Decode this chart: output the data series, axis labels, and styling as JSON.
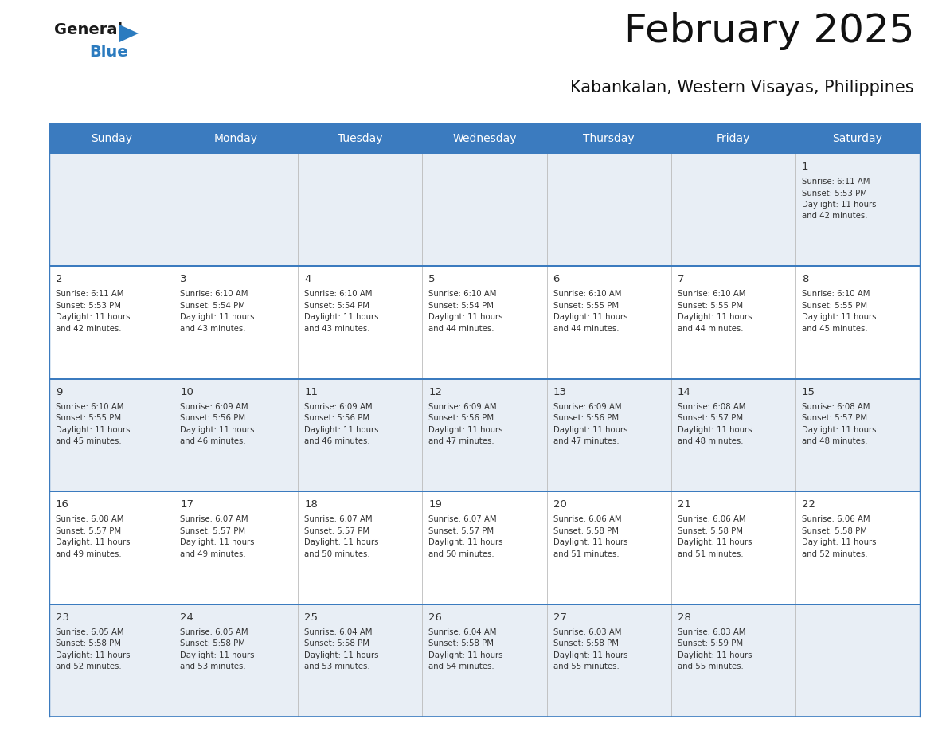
{
  "title": "February 2025",
  "subtitle": "Kabankalan, Western Visayas, Philippines",
  "header_bg": "#3b7bbf",
  "header_text_color": "#ffffff",
  "cell_bg_odd": "#e8eef5",
  "cell_bg_even": "#ffffff",
  "border_color": "#3b7bbf",
  "text_color": "#333333",
  "day_headers": [
    "Sunday",
    "Monday",
    "Tuesday",
    "Wednesday",
    "Thursday",
    "Friday",
    "Saturday"
  ],
  "logo_color1": "#1a1a1a",
  "logo_color2": "#2b7bbf",
  "calendar": [
    [
      null,
      null,
      null,
      null,
      null,
      null,
      {
        "day": "1",
        "sunrise": "6:11 AM",
        "sunset": "5:53 PM",
        "dl_min": "42"
      }
    ],
    [
      {
        "day": "2",
        "sunrise": "6:11 AM",
        "sunset": "5:53 PM",
        "dl_min": "42"
      },
      {
        "day": "3",
        "sunrise": "6:10 AM",
        "sunset": "5:54 PM",
        "dl_min": "43"
      },
      {
        "day": "4",
        "sunrise": "6:10 AM",
        "sunset": "5:54 PM",
        "dl_min": "43"
      },
      {
        "day": "5",
        "sunrise": "6:10 AM",
        "sunset": "5:54 PM",
        "dl_min": "44"
      },
      {
        "day": "6",
        "sunrise": "6:10 AM",
        "sunset": "5:55 PM",
        "dl_min": "44"
      },
      {
        "day": "7",
        "sunrise": "6:10 AM",
        "sunset": "5:55 PM",
        "dl_min": "44"
      },
      {
        "day": "8",
        "sunrise": "6:10 AM",
        "sunset": "5:55 PM",
        "dl_min": "45"
      }
    ],
    [
      {
        "day": "9",
        "sunrise": "6:10 AM",
        "sunset": "5:55 PM",
        "dl_min": "45"
      },
      {
        "day": "10",
        "sunrise": "6:09 AM",
        "sunset": "5:56 PM",
        "dl_min": "46"
      },
      {
        "day": "11",
        "sunrise": "6:09 AM",
        "sunset": "5:56 PM",
        "dl_min": "46"
      },
      {
        "day": "12",
        "sunrise": "6:09 AM",
        "sunset": "5:56 PM",
        "dl_min": "47"
      },
      {
        "day": "13",
        "sunrise": "6:09 AM",
        "sunset": "5:56 PM",
        "dl_min": "47"
      },
      {
        "day": "14",
        "sunrise": "6:08 AM",
        "sunset": "5:57 PM",
        "dl_min": "48"
      },
      {
        "day": "15",
        "sunrise": "6:08 AM",
        "sunset": "5:57 PM",
        "dl_min": "48"
      }
    ],
    [
      {
        "day": "16",
        "sunrise": "6:08 AM",
        "sunset": "5:57 PM",
        "dl_min": "49"
      },
      {
        "day": "17",
        "sunrise": "6:07 AM",
        "sunset": "5:57 PM",
        "dl_min": "49"
      },
      {
        "day": "18",
        "sunrise": "6:07 AM",
        "sunset": "5:57 PM",
        "dl_min": "50"
      },
      {
        "day": "19",
        "sunrise": "6:07 AM",
        "sunset": "5:57 PM",
        "dl_min": "50"
      },
      {
        "day": "20",
        "sunrise": "6:06 AM",
        "sunset": "5:58 PM",
        "dl_min": "51"
      },
      {
        "day": "21",
        "sunrise": "6:06 AM",
        "sunset": "5:58 PM",
        "dl_min": "51"
      },
      {
        "day": "22",
        "sunrise": "6:06 AM",
        "sunset": "5:58 PM",
        "dl_min": "52"
      }
    ],
    [
      {
        "day": "23",
        "sunrise": "6:05 AM",
        "sunset": "5:58 PM",
        "dl_min": "52"
      },
      {
        "day": "24",
        "sunrise": "6:05 AM",
        "sunset": "5:58 PM",
        "dl_min": "53"
      },
      {
        "day": "25",
        "sunrise": "6:04 AM",
        "sunset": "5:58 PM",
        "dl_min": "53"
      },
      {
        "day": "26",
        "sunrise": "6:04 AM",
        "sunset": "5:58 PM",
        "dl_min": "54"
      },
      {
        "day": "27",
        "sunrise": "6:03 AM",
        "sunset": "5:58 PM",
        "dl_min": "55"
      },
      {
        "day": "28",
        "sunrise": "6:03 AM",
        "sunset": "5:59 PM",
        "dl_min": "55"
      },
      null
    ]
  ]
}
